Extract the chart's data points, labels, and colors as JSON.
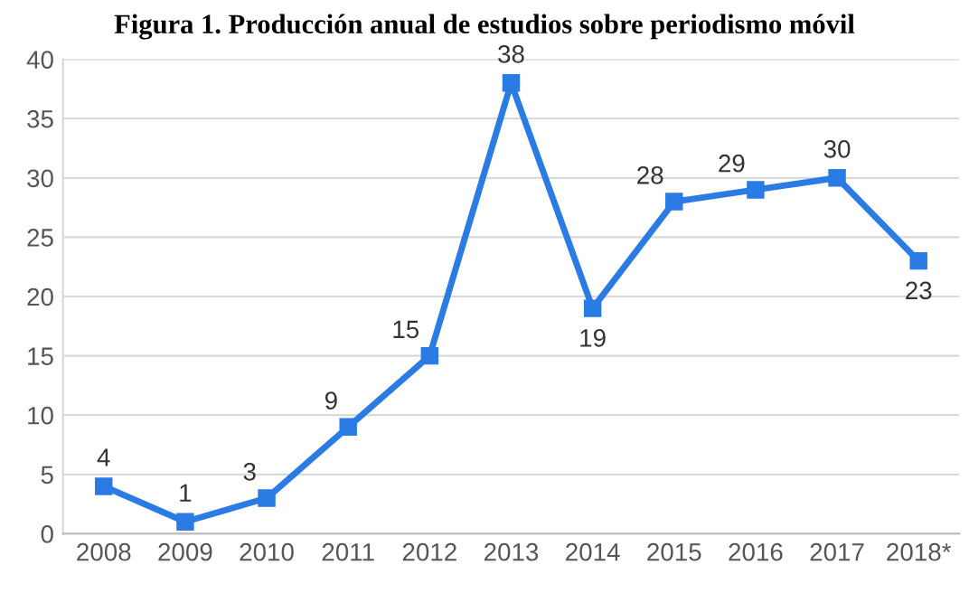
{
  "chart_data": {
    "type": "line",
    "title": "Figura 1. Producción anual de estudios sobre periodismo móvil",
    "categories": [
      "2008",
      "2009",
      "2010",
      "2011",
      "2012",
      "2013",
      "2014",
      "2015",
      "2016",
      "2017",
      "2018*"
    ],
    "series": [
      {
        "color": "#2a7be4",
        "values": [
          4,
          1,
          3,
          9,
          15,
          38,
          19,
          28,
          29,
          30,
          23
        ]
      }
    ],
    "ylim": [
      0,
      40
    ],
    "yticks": [
      0,
      5,
      10,
      15,
      20,
      25,
      30,
      35,
      40
    ],
    "grid": "y",
    "marker": "square",
    "line_style": "solid",
    "data_labels": true
  }
}
